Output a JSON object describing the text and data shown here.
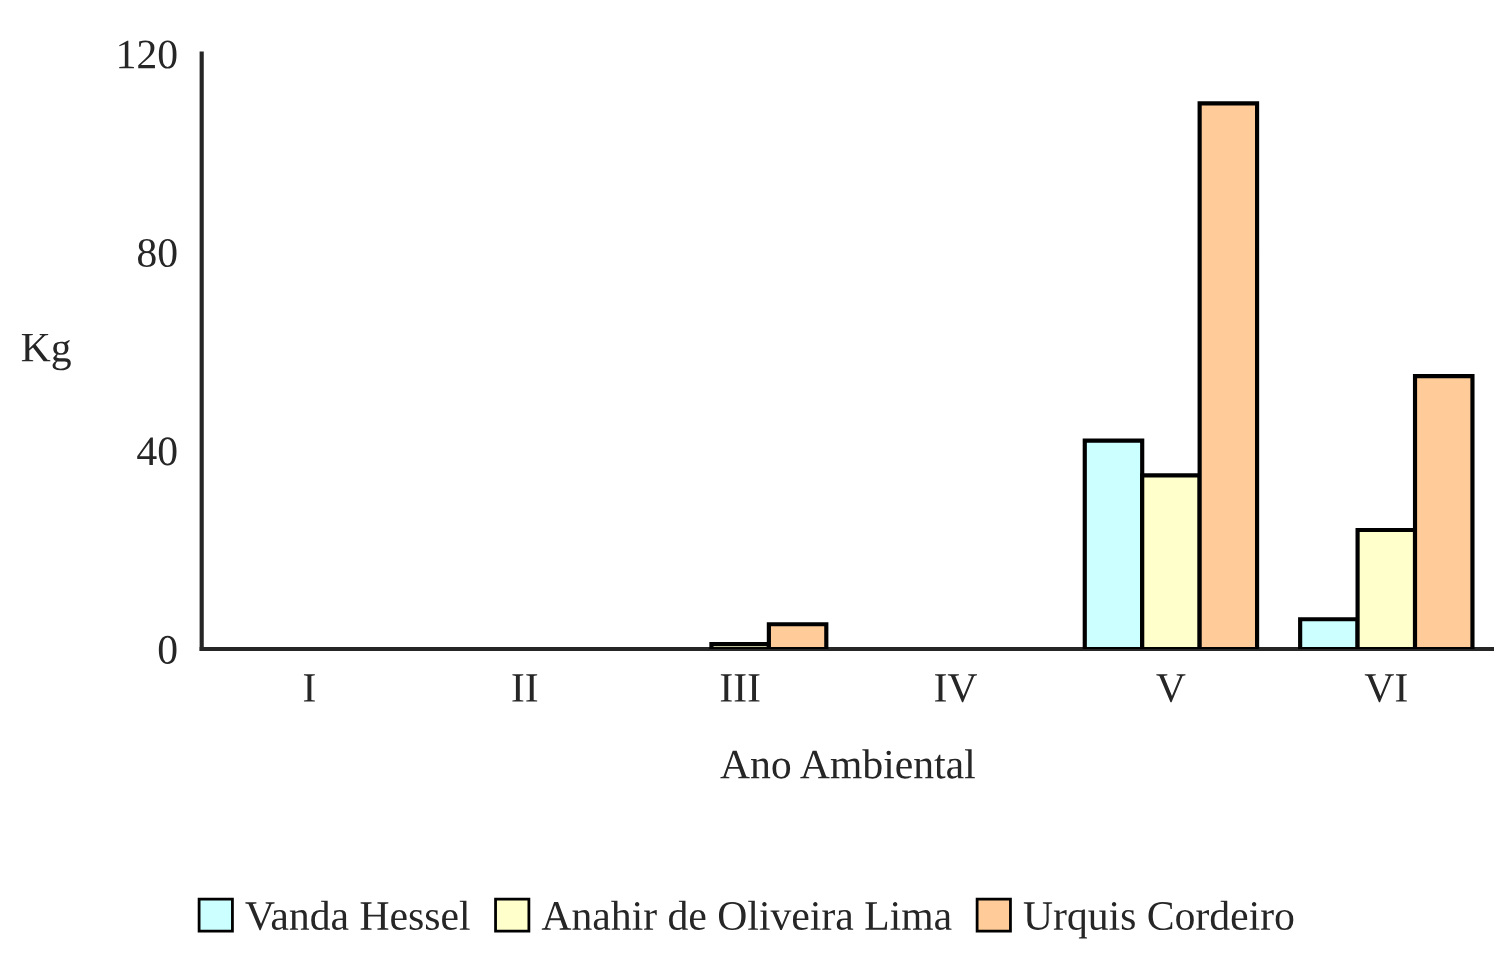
{
  "chart_data": {
    "type": "bar",
    "xlabel": "Ano Ambiental",
    "ylabel": "Kg",
    "categories": [
      "I",
      "II",
      "III",
      "IV",
      "V",
      "VI"
    ],
    "series": [
      {
        "name": "Vanda Hessel",
        "color": "#ccffff",
        "values": [
          0,
          0,
          0,
          0,
          42,
          6
        ]
      },
      {
        "name": "Anahir de Oliveira Lima",
        "color": "#ffffcc",
        "values": [
          0,
          0,
          1,
          0,
          35,
          24
        ]
      },
      {
        "name": "Urquis Cordeiro",
        "color": "#ffcc99",
        "values": [
          0,
          0,
          5,
          0,
          110,
          55
        ]
      }
    ],
    "ylim": [
      0,
      120
    ],
    "yticks": [
      0,
      40,
      80,
      120
    ],
    "grid": false,
    "legend": "bottom"
  }
}
